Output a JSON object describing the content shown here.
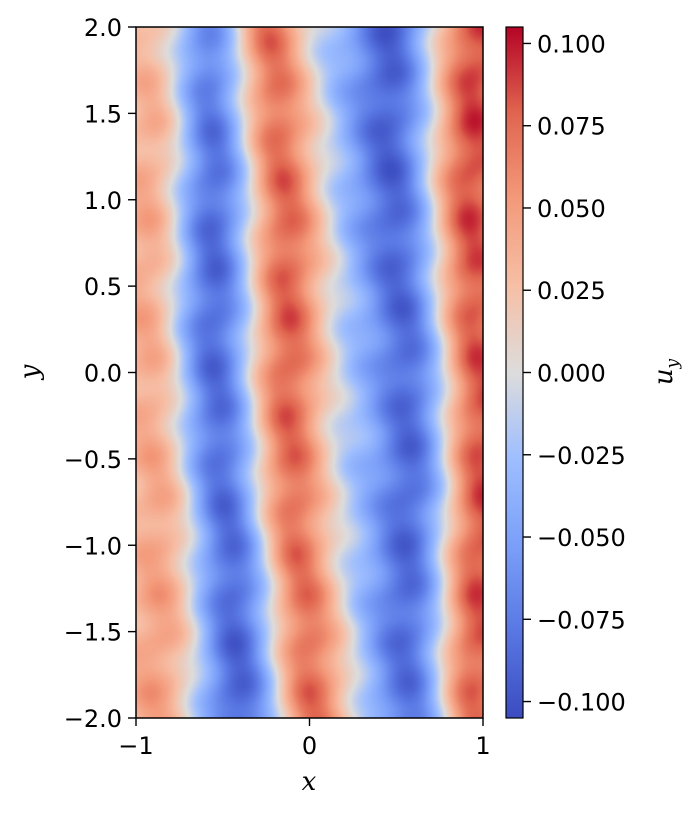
{
  "chart_data": {
    "type": "heatmap",
    "title": "",
    "xlabel": "x",
    "ylabel": "y",
    "colorbar_label": "u",
    "colorbar_label_subscript": "y",
    "colormap": "coolwarm",
    "xlim": [
      -1,
      1
    ],
    "ylim": [
      -2,
      2
    ],
    "clim": [
      -0.105,
      0.105
    ],
    "x_ticks": [
      -1,
      0,
      1
    ],
    "x_tick_labels": [
      "−1",
      "0",
      "1"
    ],
    "y_ticks": [
      -2.0,
      -1.5,
      -1.0,
      -0.5,
      0.0,
      0.5,
      1.0,
      1.5,
      2.0
    ],
    "y_tick_labels": [
      "−2.0",
      "−1.5",
      "−1.0",
      "−0.5",
      "0.0",
      "0.5",
      "1.0",
      "1.5",
      "2.0"
    ],
    "colorbar_ticks": [
      -0.1,
      -0.075,
      -0.05,
      -0.025,
      0.0,
      0.025,
      0.05,
      0.075,
      0.1
    ],
    "colorbar_tick_labels": [
      "−0.100",
      "−0.075",
      "−0.050",
      "−0.025",
      "0.000",
      "0.025",
      "0.050",
      "0.075",
      "0.100"
    ],
    "grid": false,
    "field_bands": [
      {
        "x_center": -0.88,
        "x_shift_per_y": 0.0,
        "amplitude": 0.05
      },
      {
        "x_center": -0.52,
        "x_shift_per_y": 0.05,
        "amplitude": -0.095
      },
      {
        "x_center": -0.12,
        "x_shift_per_y": 0.06,
        "amplitude": 0.085
      },
      {
        "x_center": 0.2,
        "x_shift_per_y": 0.04,
        "amplitude": -0.02
      },
      {
        "x_center": 0.56,
        "x_shift_per_y": 0.04,
        "amplitude": -0.09
      },
      {
        "x_center": 0.95,
        "x_shift_per_y": 0.0,
        "amplitude": 0.09
      }
    ]
  }
}
